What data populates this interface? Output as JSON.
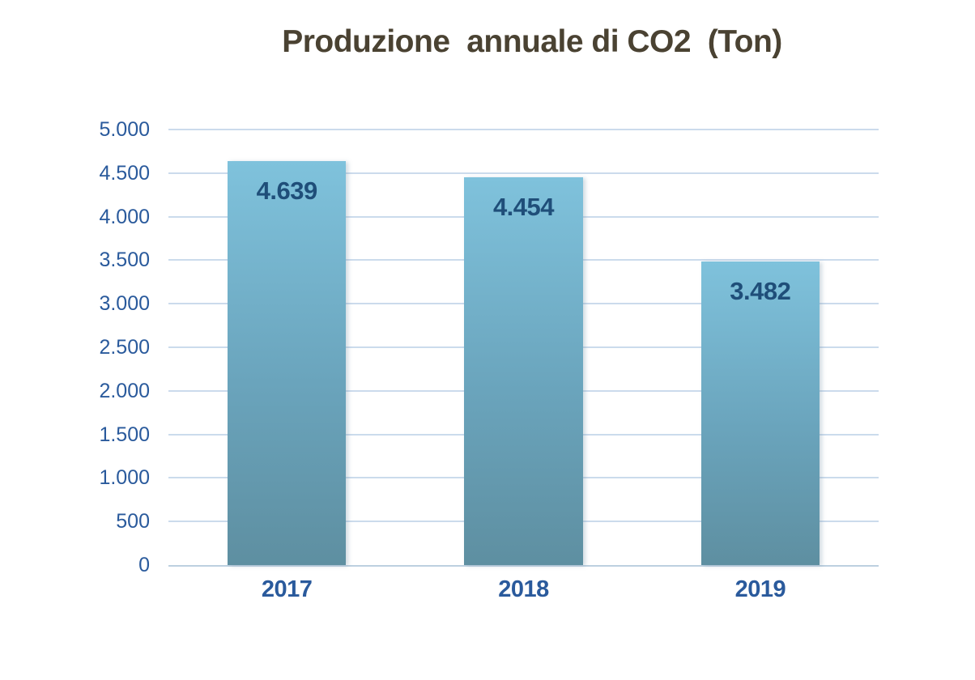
{
  "title": "Produzione  annuale di CO2  (Ton)",
  "colors": {
    "title_text": "#4a4232",
    "axis_label_text": "#2a5a9c",
    "data_label_text": "#1f4e79",
    "gridline": "#cbdbec",
    "axis_line": "#bdd0e0",
    "bar_gradient_top": "#7fc2dc",
    "bar_gradient_bottom": "#5e8fa1",
    "background": "#ffffff"
  },
  "chart_data": {
    "type": "bar",
    "title": "Produzione  annuale di CO2  (Ton)",
    "categories": [
      "2017",
      "2018",
      "2019"
    ],
    "values": [
      4639,
      4454,
      3482
    ],
    "data_labels": [
      "4.639",
      "4.454",
      "3.482"
    ],
    "xlabel": "",
    "ylabel": "",
    "ylim": [
      0,
      5000
    ],
    "ytick_step": 500,
    "ytick_labels": [
      "0",
      "500",
      "1.000",
      "1.500",
      "2.000",
      "2.500",
      "3.000",
      "3.500",
      "4.000",
      "4.500",
      "5.000"
    ],
    "grid": true,
    "legend_position": "none",
    "bar_width_fraction": 0.5,
    "data_label_position": "inside-top"
  }
}
